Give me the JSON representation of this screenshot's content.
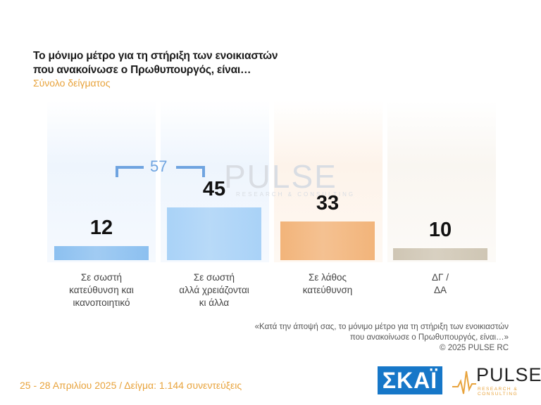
{
  "header": {
    "title_line1": "Το μόνιμο μέτρο για τη στήριξη των ενοικιαστών",
    "title_line2": "που ανακοίνωσε ο Πρωθυπουργός, είναι…",
    "subtitle": "Σύνολο δείγματος"
  },
  "chart_data": {
    "type": "bar",
    "categories": [
      [
        "Σε σωστή",
        "κατεύθυνση και",
        "ικανοποιητικό"
      ],
      [
        "Σε σωστή",
        "αλλά χρειάζονται",
        "κι άλλα"
      ],
      [
        "Σε λάθος",
        "κατεύθυνση"
      ],
      [
        "ΔΓ /",
        "ΔΑ"
      ]
    ],
    "values": [
      12,
      45,
      33,
      10
    ],
    "value_labels": [
      "12",
      "45",
      "33",
      "10"
    ],
    "colors": [
      "#8cc0f0",
      "#a9d2f7",
      "#f2b47a",
      "#cfc6b4"
    ],
    "bracket": {
      "label": "57",
      "spans": [
        0,
        1
      ]
    },
    "ylim": [
      0,
      45
    ]
  },
  "watermark": {
    "text": "PULSE",
    "sub": "RESEARCH & CONSULTING"
  },
  "note": {
    "line1": "«Κατά την άποψή σας, το μόνιμο μέτρο για τη στήριξη των ενοικιαστών",
    "line2": "που ανακοίνωσε ο Πρωθυπουργός, είναι…»",
    "line3": "©  2025  PULSE RC"
  },
  "footer": {
    "date_sample": "25 - 28 Απριλίου 2025  /  Δείγμα:  1.144 συνεντεύξεις"
  },
  "logos": {
    "skai": "ΣΚΑΪ",
    "pulse": "PULSE",
    "pulse_sub": "RESEARCH & CONSULTING"
  }
}
